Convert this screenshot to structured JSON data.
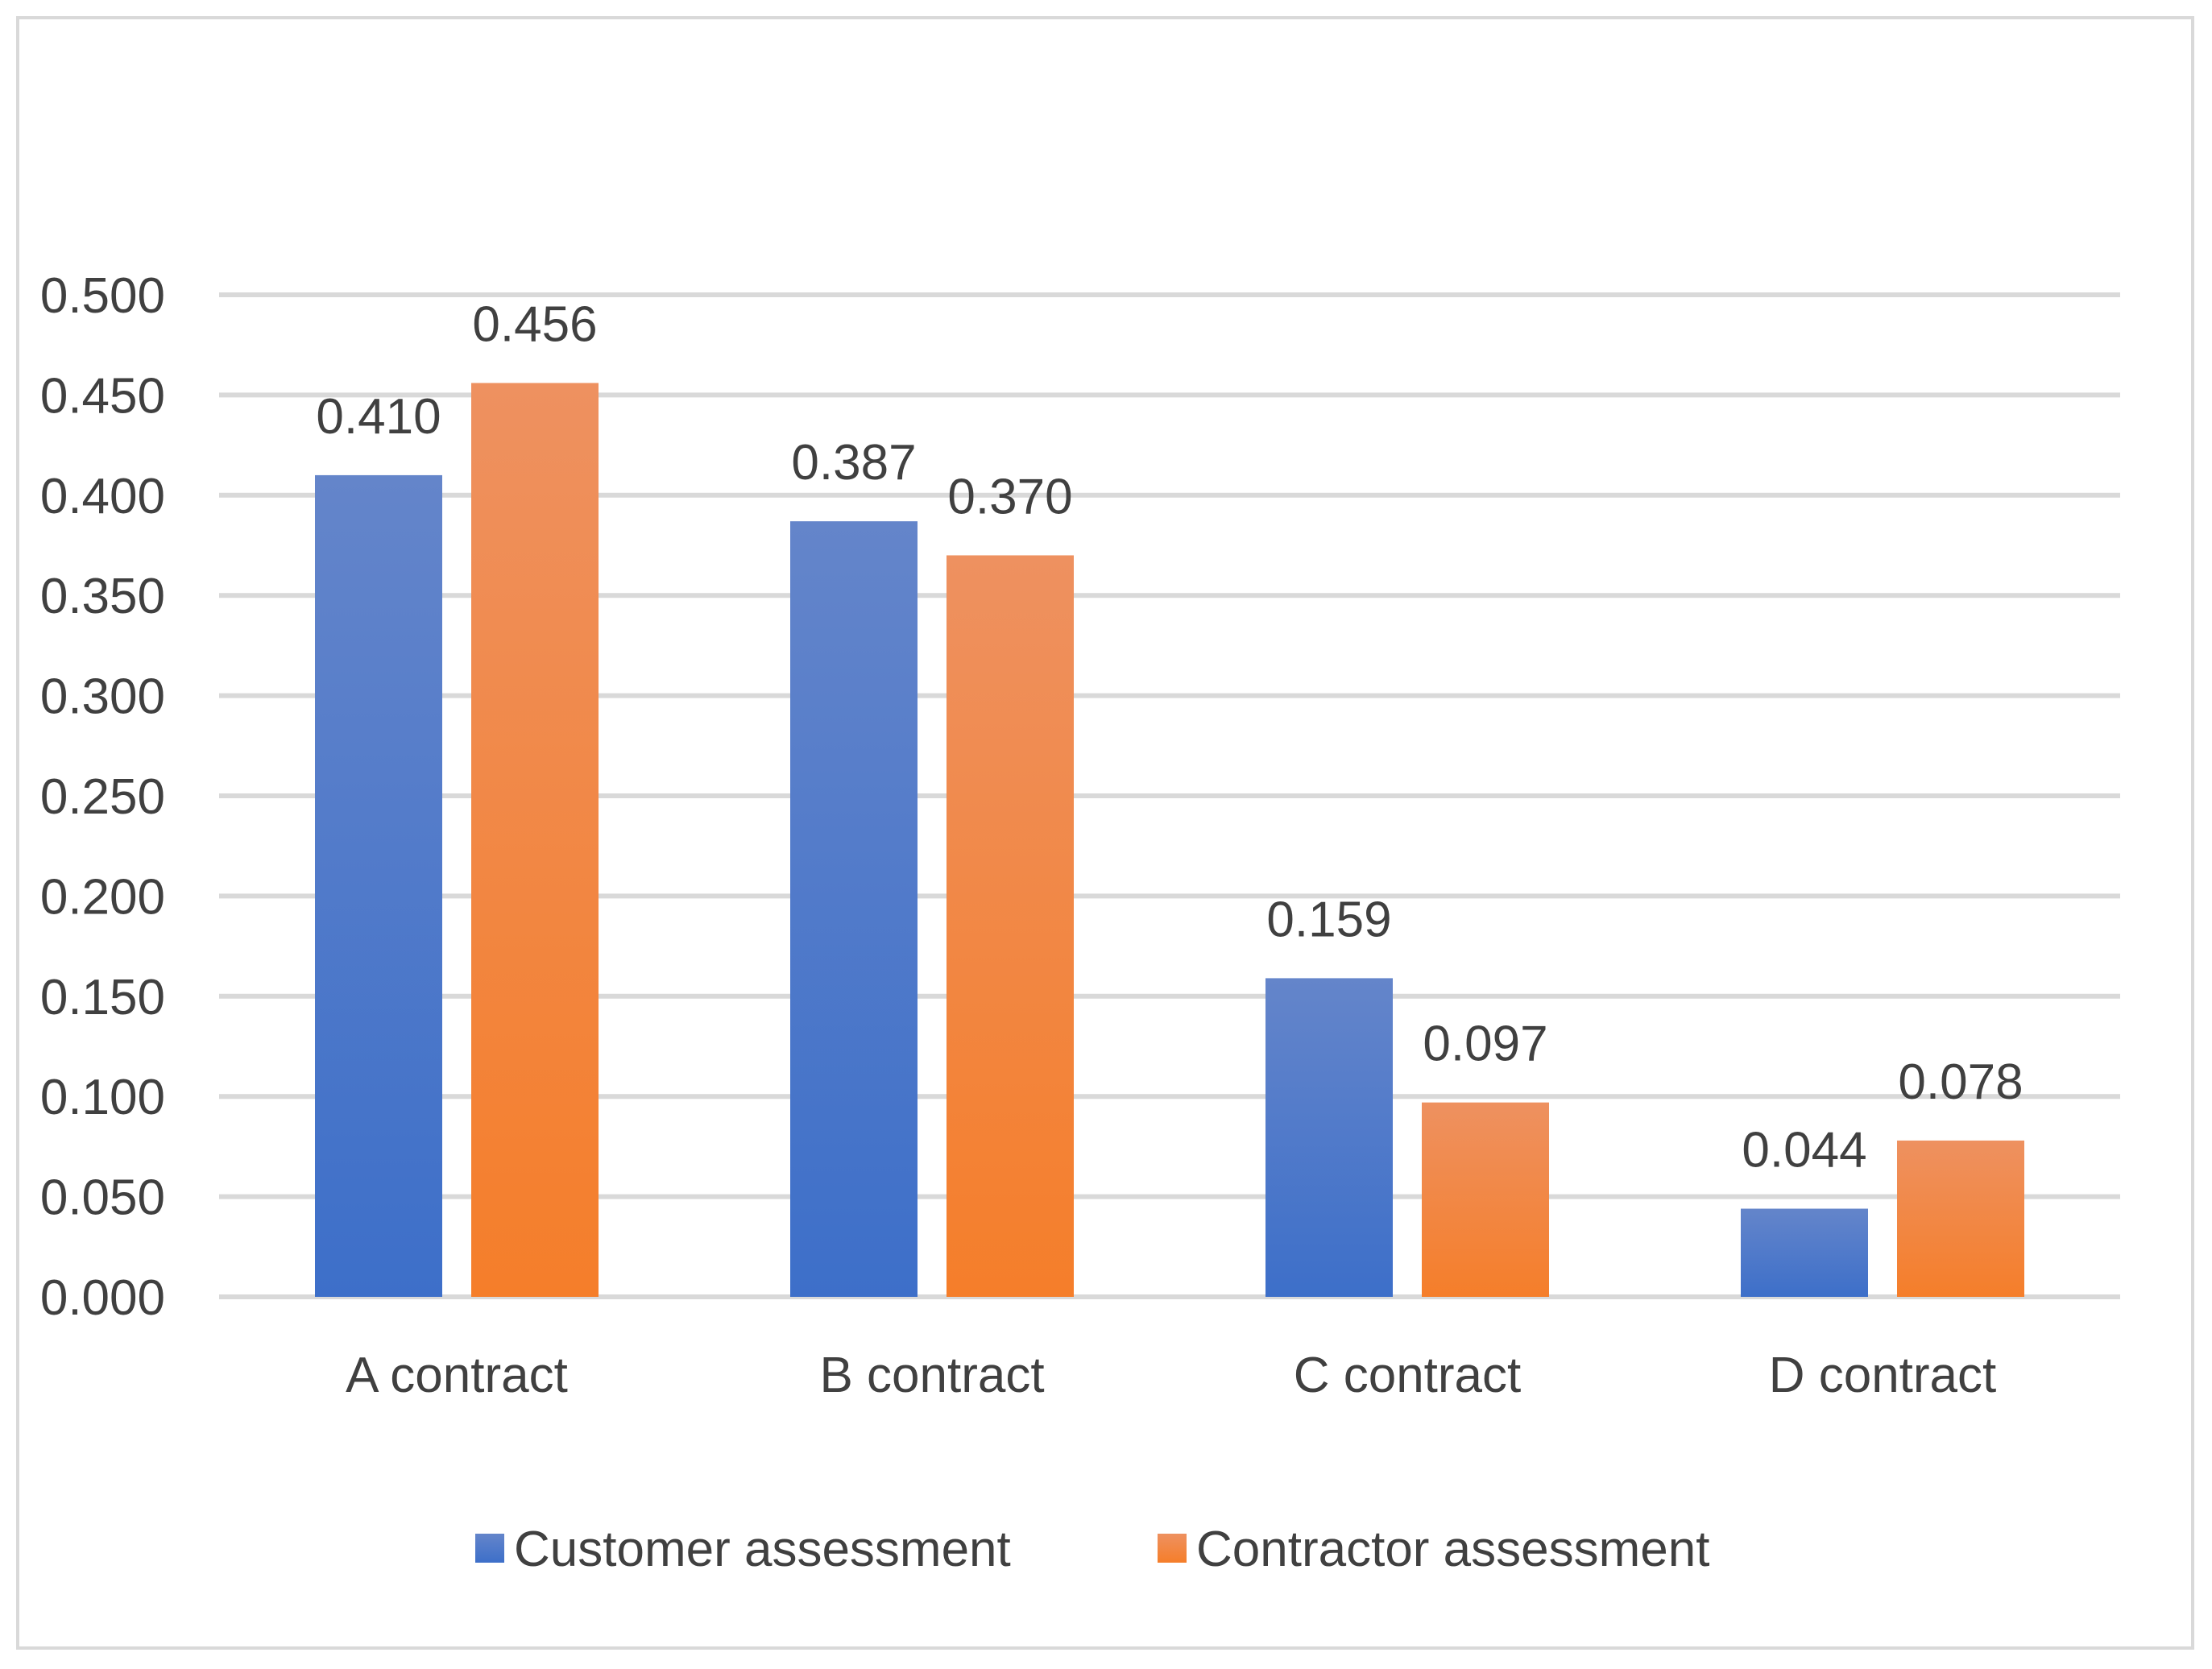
{
  "chart_data": {
    "type": "bar",
    "title": "",
    "xlabel": "",
    "ylabel": "",
    "categories": [
      "A contract",
      "B contract",
      "C contract",
      "D contract"
    ],
    "series": [
      {
        "name": "Customer assessment",
        "values": [
          0.41,
          0.387,
          0.159,
          0.044
        ],
        "labels": [
          "0.410",
          "0.387",
          "0.159",
          "0.044"
        ]
      },
      {
        "name": "Contractor assessment",
        "values": [
          0.456,
          0.37,
          0.097,
          0.078
        ],
        "labels": [
          "0.456",
          "0.370",
          "0.097",
          "0.078"
        ]
      }
    ],
    "ylim": [
      0,
      0.5
    ],
    "yticks": [
      "0.000",
      "0.050",
      "0.100",
      "0.150",
      "0.200",
      "0.250",
      "0.300",
      "0.350",
      "0.400",
      "0.450",
      "0.500"
    ],
    "grid": true,
    "legend": "bottom-center"
  },
  "colors": {
    "customer_top": "#6485CA",
    "customer_bottom": "#3D6FC9",
    "contractor_top": "#EE9160",
    "contractor_bottom": "#F57E2A",
    "grid": "#D9D9D9",
    "frame": "#D9D9D9",
    "text": "#404040"
  }
}
